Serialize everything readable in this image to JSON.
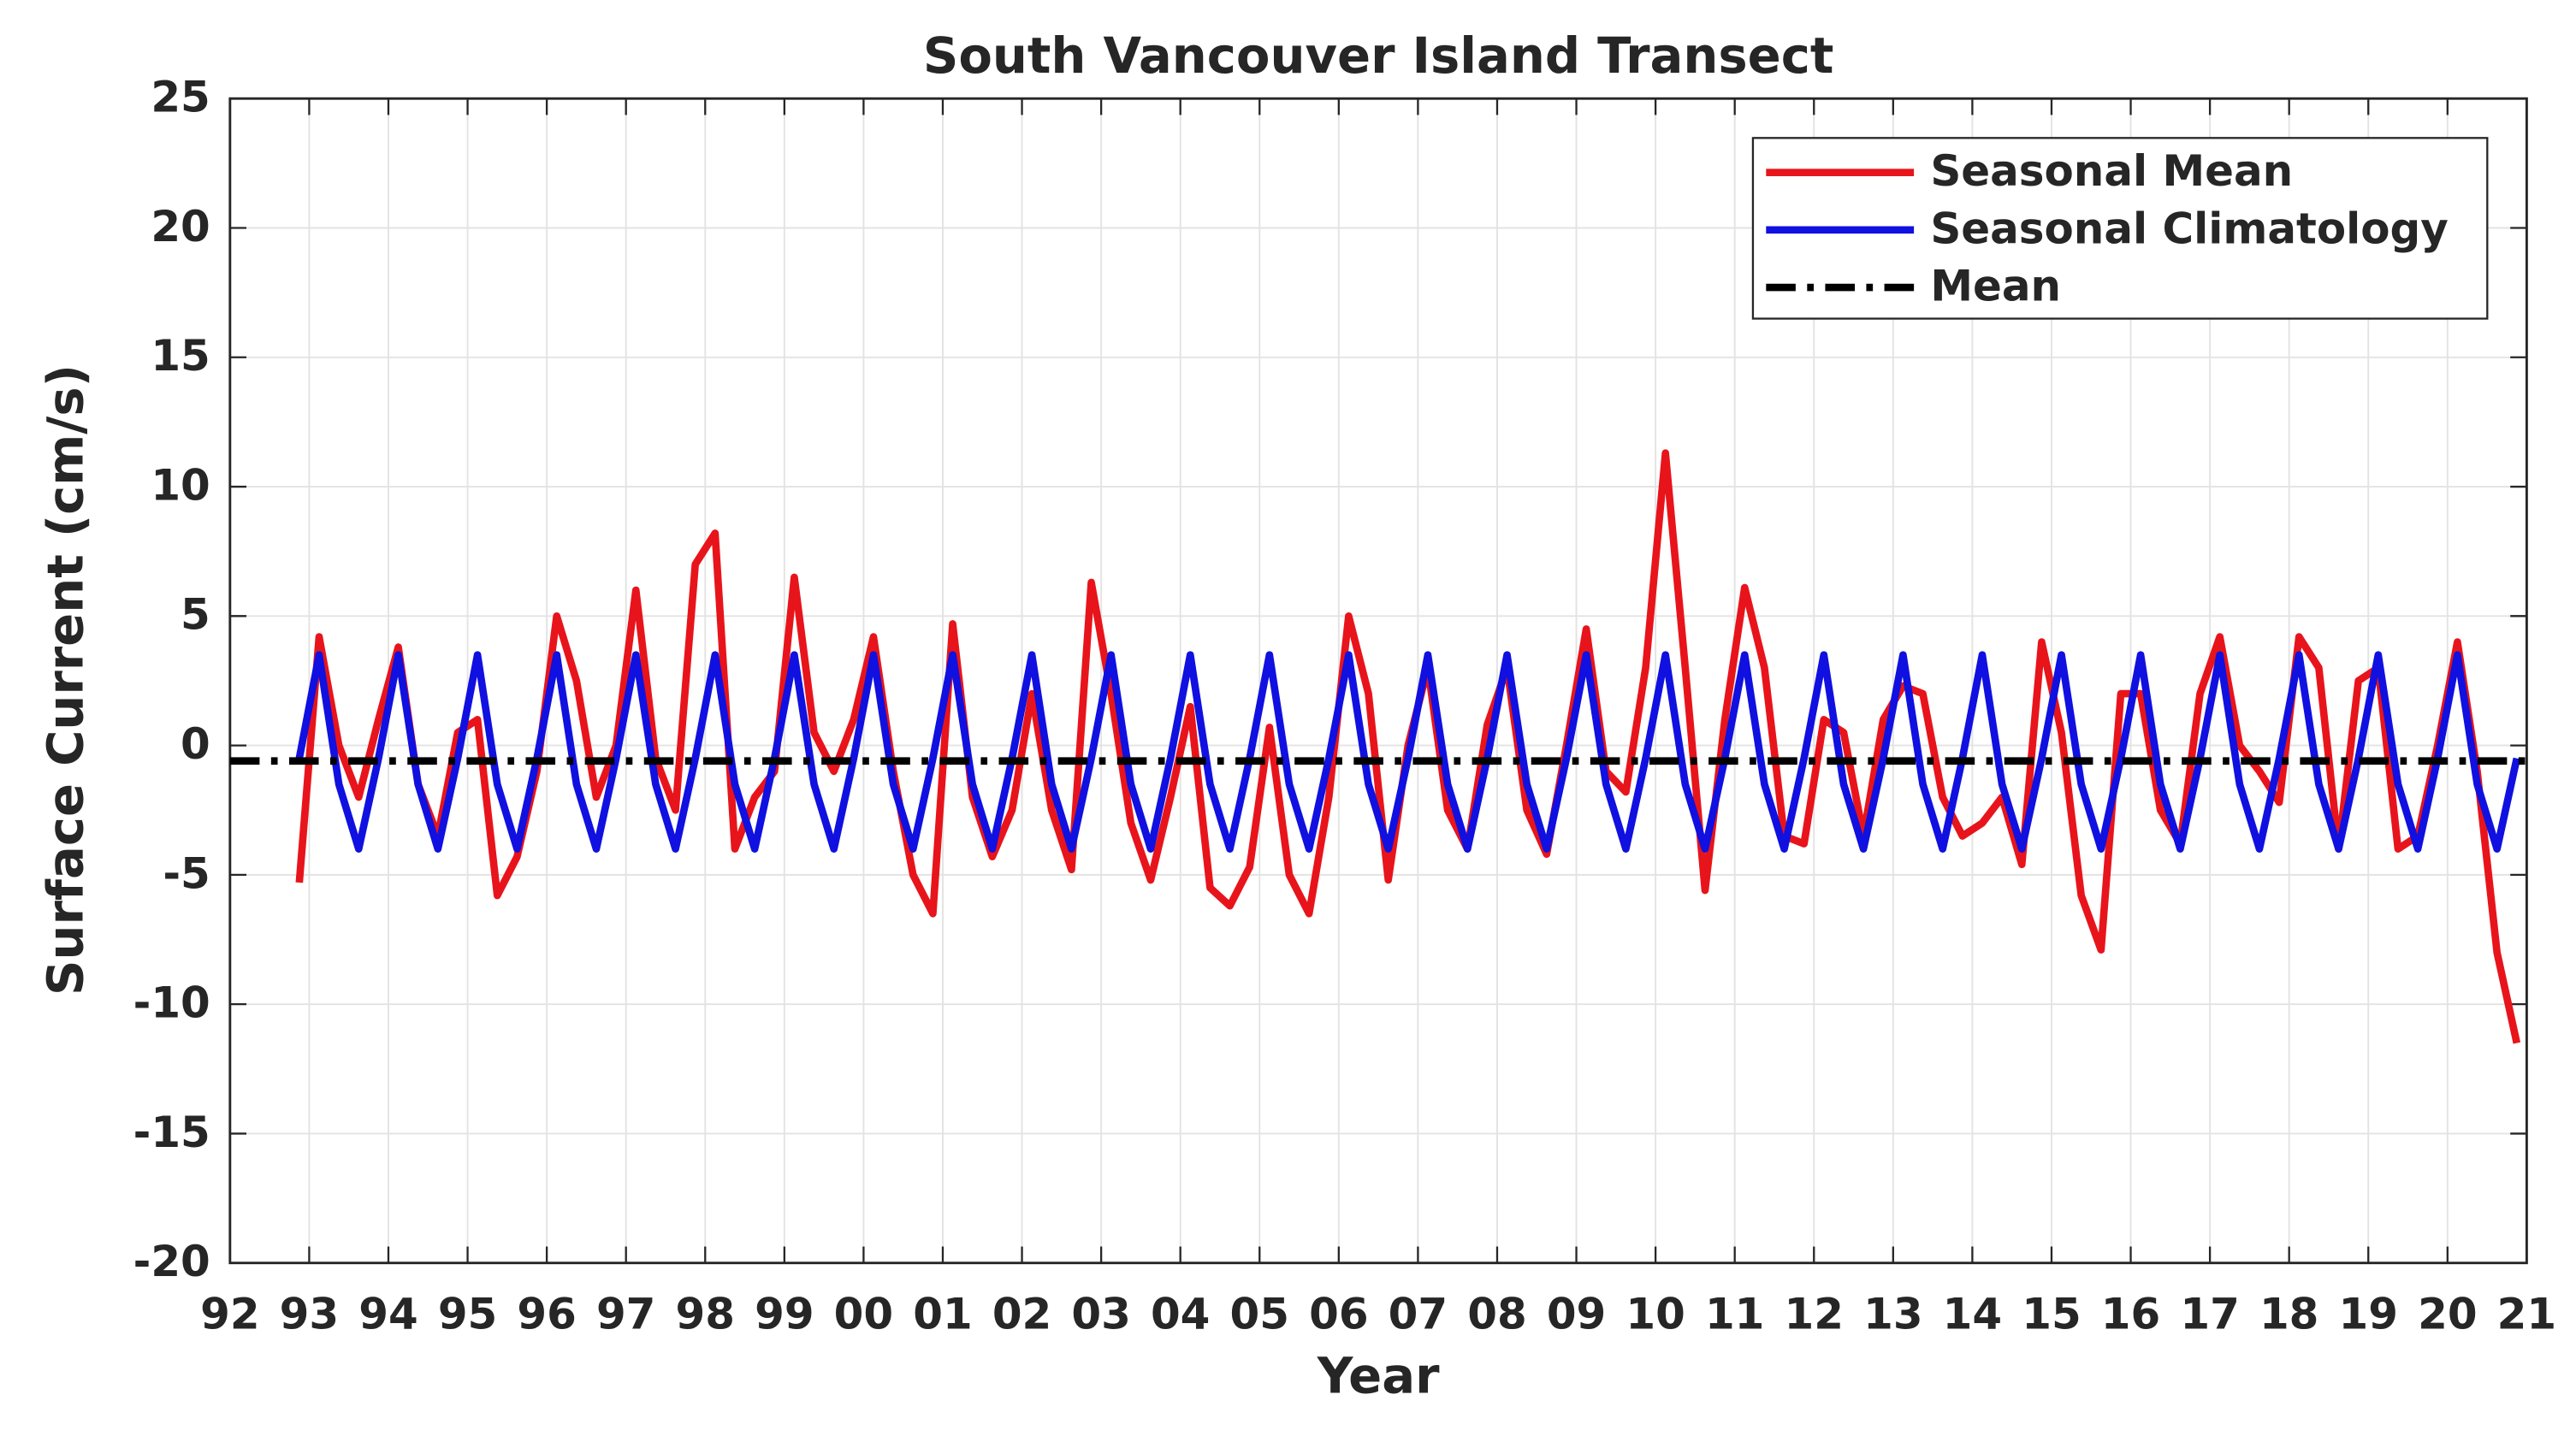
{
  "chart_data": {
    "type": "line",
    "title": "South Vancouver Island Transect",
    "x_label": "Year",
    "y_label": "Surface Current (cm/s)",
    "x": [
      1992.875,
      1993.125,
      1993.375,
      1993.625,
      1993.875,
      1994.125,
      1994.375,
      1994.625,
      1994.875,
      1995.125,
      1995.375,
      1995.625,
      1995.875,
      1996.125,
      1996.375,
      1996.625,
      1996.875,
      1997.125,
      1997.375,
      1997.625,
      1997.875,
      1998.125,
      1998.375,
      1998.625,
      1998.875,
      1999.125,
      1999.375,
      1999.625,
      1999.875,
      2000.125,
      2000.375,
      2000.625,
      2000.875,
      2001.125,
      2001.375,
      2001.625,
      2001.875,
      2002.125,
      2002.375,
      2002.625,
      2002.875,
      2003.125,
      2003.375,
      2003.625,
      2003.875,
      2004.125,
      2004.375,
      2004.625,
      2004.875,
      2005.125,
      2005.375,
      2005.625,
      2005.875,
      2006.125,
      2006.375,
      2006.625,
      2006.875,
      2007.125,
      2007.375,
      2007.625,
      2007.875,
      2008.125,
      2008.375,
      2008.625,
      2008.875,
      2009.125,
      2009.375,
      2009.625,
      2009.875,
      2010.125,
      2010.375,
      2010.625,
      2010.875,
      2011.125,
      2011.375,
      2011.625,
      2011.875,
      2012.125,
      2012.375,
      2012.625,
      2012.875,
      2013.125,
      2013.375,
      2013.625,
      2013.875,
      2014.125,
      2014.375,
      2014.625,
      2014.875,
      2015.125,
      2015.375,
      2015.625,
      2015.875,
      2016.125,
      2016.375,
      2016.625,
      2016.875,
      2017.125,
      2017.375,
      2017.625,
      2017.875,
      2018.125,
      2018.375,
      2018.625,
      2018.875,
      2019.125,
      2019.375,
      2019.625,
      2019.875,
      2020.125,
      2020.375,
      2020.625,
      2020.875
    ],
    "series": [
      {
        "name": "Seasonal Mean",
        "color": "#e8141b",
        "values": [
          -5.3,
          4.2,
          0,
          -2,
          1,
          3.8,
          -1.5,
          -3.5,
          0.5,
          1,
          -5.8,
          -4.3,
          -1,
          5,
          2.5,
          -2,
          0,
          6,
          -0.5,
          -2.5,
          7,
          8.2,
          -4,
          -2,
          -1,
          6.5,
          0.5,
          -1,
          1,
          4.2,
          -1,
          -5,
          -6.5,
          4.7,
          -2,
          -4.3,
          -2.5,
          2,
          -2.5,
          -4.8,
          6.3,
          2,
          -3,
          -5.2,
          -2,
          1.5,
          -5.5,
          -6.2,
          -4.7,
          0.7,
          -5,
          -6.5,
          -2,
          5,
          2,
          -5.2,
          0,
          3,
          -2.5,
          -4,
          0.8,
          3,
          -2.5,
          -4.2,
          0,
          4.5,
          -1,
          -1.8,
          3,
          11.3,
          3,
          -5.6,
          1,
          6.1,
          3,
          -3.5,
          -3.8,
          1,
          0.5,
          -3.5,
          1,
          2.3,
          2,
          -2,
          -3.5,
          -3,
          -2,
          -4.6,
          4,
          0.5,
          -5.8,
          -7.9,
          2,
          2,
          -2.5,
          -3.8,
          2,
          4.2,
          0,
          -1,
          -2.2,
          4.2,
          3,
          -4,
          2.5,
          3,
          -4,
          -3.5,
          0,
          4,
          -1,
          -8,
          -11.5
        ]
      },
      {
        "name": "Seasonal Climatology",
        "color": "#1010e0",
        "values": [
          -0.5,
          3.5,
          -1.5,
          -4,
          -0.5,
          3.5,
          -1.5,
          -4,
          -0.5,
          3.5,
          -1.5,
          -4,
          -0.5,
          3.5,
          -1.5,
          -4,
          -0.5,
          3.5,
          -1.5,
          -4,
          -0.5,
          3.5,
          -1.5,
          -4,
          -0.5,
          3.5,
          -1.5,
          -4,
          -0.5,
          3.5,
          -1.5,
          -4,
          -0.5,
          3.5,
          -1.5,
          -4,
          -0.5,
          3.5,
          -1.5,
          -4,
          -0.5,
          3.5,
          -1.5,
          -4,
          -0.5,
          3.5,
          -1.5,
          -4,
          -0.5,
          3.5,
          -1.5,
          -4,
          -0.5,
          3.5,
          -1.5,
          -4,
          -0.5,
          3.5,
          -1.5,
          -4,
          -0.5,
          3.5,
          -1.5,
          -4,
          -0.5,
          3.5,
          -1.5,
          -4,
          -0.5,
          3.5,
          -1.5,
          -4,
          -0.5,
          3.5,
          -1.5,
          -4,
          -0.5,
          3.5,
          -1.5,
          -4,
          -0.5,
          3.5,
          -1.5,
          -4,
          -0.5,
          3.5,
          -1.5,
          -4,
          -0.5,
          3.5,
          -1.5,
          -4,
          -0.5,
          3.5,
          -1.5,
          -4,
          -0.5,
          3.5,
          -1.5,
          -4,
          -0.5,
          3.5,
          -1.5,
          -4,
          -0.5,
          3.5,
          -1.5,
          -4,
          -0.5,
          3.5,
          -1.5,
          -4,
          -0.5
        ]
      }
    ],
    "mean": {
      "name": "Mean",
      "color": "#000000",
      "value": -0.6
    },
    "xlim": [
      1992,
      2021
    ],
    "xticks": [
      {
        "value": 1992,
        "label": "92"
      },
      {
        "value": 1993,
        "label": "93"
      },
      {
        "value": 1994,
        "label": "94"
      },
      {
        "value": 1995,
        "label": "95"
      },
      {
        "value": 1996,
        "label": "96"
      },
      {
        "value": 1997,
        "label": "97"
      },
      {
        "value": 1998,
        "label": "98"
      },
      {
        "value": 1999,
        "label": "99"
      },
      {
        "value": 2000,
        "label": "00"
      },
      {
        "value": 2001,
        "label": "01"
      },
      {
        "value": 2002,
        "label": "02"
      },
      {
        "value": 2003,
        "label": "03"
      },
      {
        "value": 2004,
        "label": "04"
      },
      {
        "value": 2005,
        "label": "05"
      },
      {
        "value": 2006,
        "label": "06"
      },
      {
        "value": 2007,
        "label": "07"
      },
      {
        "value": 2008,
        "label": "08"
      },
      {
        "value": 2009,
        "label": "09"
      },
      {
        "value": 2010,
        "label": "10"
      },
      {
        "value": 2011,
        "label": "11"
      },
      {
        "value": 2012,
        "label": "12"
      },
      {
        "value": 2013,
        "label": "13"
      },
      {
        "value": 2014,
        "label": "14"
      },
      {
        "value": 2015,
        "label": "15"
      },
      {
        "value": 2016,
        "label": "16"
      },
      {
        "value": 2017,
        "label": "17"
      },
      {
        "value": 2018,
        "label": "18"
      },
      {
        "value": 2019,
        "label": "19"
      },
      {
        "value": 2020,
        "label": "20"
      },
      {
        "value": 2021,
        "label": "21"
      }
    ],
    "ylim": [
      -20,
      25
    ],
    "yticks": [
      -20,
      -15,
      -10,
      -5,
      0,
      5,
      10,
      15,
      20,
      25
    ],
    "grid": true,
    "legend": "upper right"
  }
}
